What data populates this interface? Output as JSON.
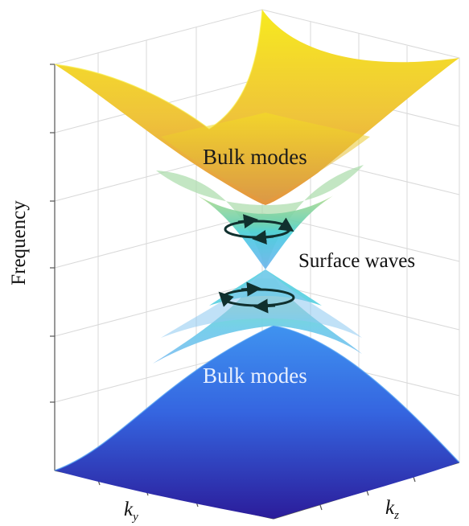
{
  "axes": {
    "vertical_label": "Frequency",
    "ky_label": "k",
    "ky_sub": "y",
    "kz_label": "k",
    "kz_sub": "z"
  },
  "annotations": {
    "upper_band": "Bulk modes",
    "middle": "Surface waves",
    "lower_band": "Bulk modes"
  },
  "colors": {
    "upper_band_top": "#f5e31a",
    "upper_band_bottom": "#e89a3a",
    "cone_green": "#7fd6a6",
    "cone_cyan": "#4fd0d8",
    "cone_light_blue": "#8cc8f0",
    "lower_band_top": "#3e8ef0",
    "lower_band_bottom": "#2a1fa0",
    "orbit_stroke": "#1a2a2a"
  }
}
